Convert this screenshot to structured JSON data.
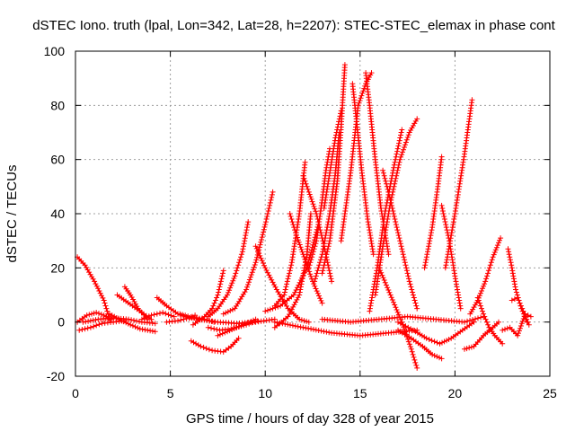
{
  "chart_data": {
    "type": "scatter",
    "title": "dSTEC Iono. truth (lpal, Lon=342, Lat=28, h=2207): STEC-STEC_elemax in phase cont",
    "xlabel": "GPS time / hours of day 328 of year 2015",
    "ylabel": "dSTEC  / TECUs",
    "xlim": [
      0,
      25
    ],
    "ylim": [
      -20,
      100
    ],
    "xticks": [
      0,
      5,
      10,
      15,
      20,
      25
    ],
    "yticks": [
      -20,
      0,
      20,
      40,
      60,
      80,
      100
    ],
    "grid": true,
    "marker": "+",
    "color": "#ff0000",
    "series": [
      {
        "x": [
          0.1,
          0.6,
          1.1,
          1.5,
          1.9
        ],
        "y": [
          0,
          2.5,
          3.5,
          2.5,
          1
        ]
      },
      {
        "x": [
          0.1,
          0.5,
          1.0,
          1.5,
          1.8
        ],
        "y": [
          24,
          21,
          15,
          8,
          1
        ]
      },
      {
        "x": [
          0.2,
          0.8,
          1.4,
          2.0,
          2.6
        ],
        "y": [
          -3,
          -2,
          -0.5,
          0,
          0.5
        ]
      },
      {
        "x": [
          0.4,
          1.2,
          2.0,
          2.8,
          3.5,
          4.2
        ],
        "y": [
          0,
          1,
          1.5,
          1,
          0,
          -0.5
        ]
      },
      {
        "x": [
          1.8,
          2.3,
          2.9,
          3.4,
          4.2
        ],
        "y": [
          3,
          1,
          -1,
          -2.5,
          -3.5
        ]
      },
      {
        "x": [
          2.6,
          2.9,
          3.3,
          3.8
        ],
        "y": [
          13,
          10,
          5,
          1
        ]
      },
      {
        "x": [
          2.2,
          3.0,
          3.6,
          4.0
        ],
        "y": [
          10,
          6,
          3,
          1
        ]
      },
      {
        "x": [
          3.5,
          4.0,
          4.6,
          5.2
        ],
        "y": [
          1,
          2.5,
          3.5,
          2
        ]
      },
      {
        "x": [
          4.3,
          4.8,
          5.4,
          6.0
        ],
        "y": [
          9,
          6,
          3,
          1.5
        ]
      },
      {
        "x": [
          4.8,
          5.4,
          6.0,
          6.3
        ],
        "y": [
          0,
          0.5,
          1.5,
          2.5
        ]
      },
      {
        "x": [
          6.0,
          6.4,
          6.8,
          7.3
        ],
        "y": [
          1.5,
          1.5,
          1,
          0
        ]
      },
      {
        "x": [
          6.1,
          6.6,
          7.2,
          7.8,
          8.2,
          8.6
        ],
        "y": [
          -7,
          -9,
          -10.5,
          -11,
          -9,
          -6
        ]
      },
      {
        "x": [
          5.5,
          6.5,
          7.5,
          8.5,
          9.5,
          10.5
        ],
        "y": [
          3,
          1,
          0,
          -0.5,
          0,
          1
        ]
      },
      {
        "x": [
          6.2,
          6.8,
          7.2,
          7.5,
          7.8
        ],
        "y": [
          -1,
          2,
          5,
          10,
          19
        ]
      },
      {
        "x": [
          7.0,
          7.5,
          8.0,
          8.4,
          8.8,
          9.1
        ],
        "y": [
          2,
          5,
          10,
          17,
          26,
          37
        ]
      },
      {
        "x": [
          7.8,
          8.4,
          9.0,
          9.5,
          10.0,
          10.4
        ],
        "y": [
          3,
          5,
          12,
          22,
          36,
          48
        ]
      },
      {
        "x": [
          7.0,
          7.6,
          8.2,
          9.0,
          9.6
        ],
        "y": [
          -2,
          -3,
          -2.5,
          -1,
          0.5
        ]
      },
      {
        "x": [
          7.5,
          8.0,
          8.5,
          9.0,
          9.5
        ],
        "y": [
          -5,
          -3.5,
          -2,
          -0.5,
          1
        ]
      },
      {
        "x": [
          9.5,
          10.0,
          10.6,
          11.2,
          11.8,
          12.3
        ],
        "y": [
          28,
          20,
          12,
          5,
          1,
          0
        ]
      },
      {
        "x": [
          11.3,
          11.6,
          12.0,
          12.5,
          13.0
        ],
        "y": [
          40,
          33,
          25,
          15,
          7
        ]
      },
      {
        "x": [
          10.0,
          10.8,
          11.5,
          12.2,
          12.8
        ],
        "y": [
          4,
          6,
          10,
          20,
          36
        ]
      },
      {
        "x": [
          10.5,
          11.2,
          11.8,
          12.2,
          12.4
        ],
        "y": [
          -2,
          2,
          10,
          25,
          40
        ]
      },
      {
        "x": [
          10.5,
          11.0,
          11.4,
          11.8,
          12.1
        ],
        "y": [
          6,
          10,
          22,
          40,
          59
        ]
      },
      {
        "x": [
          12.0,
          12.3,
          12.7,
          13.1,
          13.5
        ],
        "y": [
          54,
          48,
          40,
          28,
          15
        ]
      },
      {
        "x": [
          12.3,
          12.7,
          13.0,
          13.2,
          13.4
        ],
        "y": [
          20,
          30,
          45,
          56,
          64
        ]
      },
      {
        "x": [
          12.6,
          13.0,
          13.4,
          13.7,
          13.9
        ],
        "y": [
          15,
          25,
          40,
          55,
          70
        ]
      },
      {
        "x": [
          13.0,
          13.4,
          13.8,
          14.0,
          14.2
        ],
        "y": [
          18,
          30,
          52,
          72,
          95
        ]
      },
      {
        "x": [
          13.1,
          13.4,
          13.7,
          14.0
        ],
        "y": [
          42,
          55,
          68,
          78
        ]
      },
      {
        "x": [
          14.0,
          14.5,
          14.9,
          15.3,
          15.6
        ],
        "y": [
          30,
          55,
          80,
          88,
          92
        ]
      },
      {
        "x": [
          14.6,
          14.8,
          15.1,
          15.4,
          15.7
        ],
        "y": [
          88,
          75,
          55,
          38,
          25
        ]
      },
      {
        "x": [
          15.3,
          15.5,
          15.8,
          16.1,
          16.5
        ],
        "y": [
          92,
          80,
          60,
          42,
          25
        ]
      },
      {
        "x": [
          15.5,
          15.9,
          16.3,
          16.8,
          17.2
        ],
        "y": [
          4,
          20,
          40,
          58,
          71
        ]
      },
      {
        "x": [
          15.8,
          16.2,
          16.6,
          17.1,
          17.6,
          18.0
        ],
        "y": [
          10,
          28,
          44,
          60,
          70,
          75
        ]
      },
      {
        "x": [
          16.2,
          16.6,
          17.1,
          17.6,
          18.0
        ],
        "y": [
          56,
          45,
          30,
          15,
          5
        ]
      },
      {
        "x": [
          16.0,
          16.6,
          17.2,
          17.7,
          18.0
        ],
        "y": [
          20,
          10,
          0,
          -10,
          -17
        ]
      },
      {
        "x": [
          17.0,
          17.7,
          18.3,
          18.8,
          19.3
        ],
        "y": [
          -3,
          -6,
          -9,
          -12,
          -13.5
        ]
      },
      {
        "x": [
          18.4,
          18.8,
          19.1,
          19.3
        ],
        "y": [
          20,
          35,
          50,
          61
        ]
      },
      {
        "x": [
          19.3,
          19.7,
          20.0,
          20.3
        ],
        "y": [
          43,
          30,
          17,
          5
        ]
      },
      {
        "x": [
          17.0,
          17.8,
          18.5,
          19.2,
          19.8,
          20.4,
          21.0
        ],
        "y": [
          0,
          -3,
          -6,
          -8,
          -6,
          -3,
          0
        ]
      },
      {
        "x": [
          19.5,
          20.0,
          20.5,
          20.9
        ],
        "y": [
          20,
          40,
          62,
          82
        ]
      },
      {
        "x": [
          10.5,
          12.0,
          13.5,
          15.0,
          16.5,
          18.0
        ],
        "y": [
          0,
          -2,
          -4,
          -5,
          -4,
          -3
        ]
      },
      {
        "x": [
          13.0,
          14.5,
          16.0,
          17.5,
          19.0,
          20.5,
          21.5
        ],
        "y": [
          1,
          0,
          1,
          2,
          1,
          0,
          2
        ]
      },
      {
        "x": [
          20.5,
          21.0,
          21.5,
          22.0,
          22.3
        ],
        "y": [
          -10,
          -9,
          -5,
          -2,
          0
        ]
      },
      {
        "x": [
          20.8,
          21.2,
          21.6,
          22.0,
          22.4
        ],
        "y": [
          3,
          8,
          15,
          24,
          31
        ]
      },
      {
        "x": [
          21.2,
          21.5,
          21.8,
          22.1,
          22.5
        ],
        "y": [
          9,
          3,
          -2,
          -5,
          -8
        ]
      },
      {
        "x": [
          22.8,
          23.0,
          23.2,
          23.5,
          23.8
        ],
        "y": [
          27,
          20,
          12,
          5,
          0
        ]
      },
      {
        "x": [
          22.5,
          22.9,
          23.3,
          23.7,
          24.0
        ],
        "y": [
          -3,
          -2,
          -5,
          3,
          2
        ]
      },
      {
        "x": [
          23.0,
          23.3,
          23.6,
          23.9
        ],
        "y": [
          8,
          9,
          4,
          -1
        ]
      }
    ]
  }
}
